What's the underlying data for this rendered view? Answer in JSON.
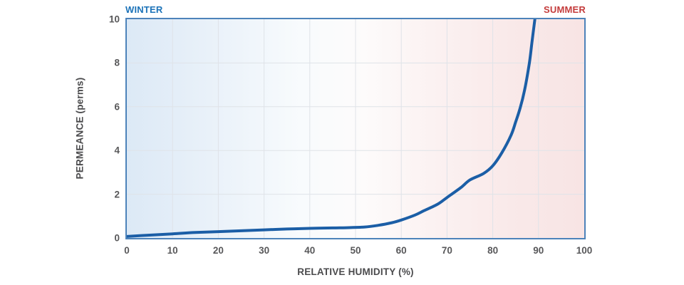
{
  "labels": {
    "winter": "WINTER",
    "summer": "SUMMER",
    "x_axis_title": "RELATIVE HUMIDITY (%)",
    "y_axis_title": "PERMEANCE (perms)"
  },
  "colors": {
    "winter_label": "#1b72b8",
    "summer_label": "#c43c3c",
    "curve": "#1b5ea6",
    "plot_border": "#4d83ba",
    "gridline": "#dfe3e8",
    "tick_text": "#58585a",
    "winter_zone_fill": "#dce9f6",
    "summer_zone_fill": "#f8e4e4"
  },
  "chart_data": {
    "type": "line",
    "title": "",
    "xlabel": "RELATIVE HUMIDITY (%)",
    "ylabel": "PERMEANCE (perms)",
    "xlim": [
      0,
      100
    ],
    "ylim": [
      0,
      10
    ],
    "x_ticks": [
      0,
      10,
      20,
      30,
      40,
      50,
      60,
      70,
      80,
      90,
      100
    ],
    "y_ticks": [
      0,
      2,
      4,
      6,
      8,
      10
    ],
    "grid": true,
    "legend": "none",
    "annotations": [
      {
        "label": "WINTER",
        "position": "top-left",
        "color": "#1b72b8"
      },
      {
        "label": "SUMMER",
        "position": "top-right",
        "color": "#c43c3c"
      }
    ],
    "series": [
      {
        "name": "permeance-vs-humidity",
        "color": "#1b5ea6",
        "points": [
          [
            0,
            0.07
          ],
          [
            5,
            0.13
          ],
          [
            10,
            0.19
          ],
          [
            15,
            0.25
          ],
          [
            20,
            0.29
          ],
          [
            25,
            0.33
          ],
          [
            30,
            0.37
          ],
          [
            35,
            0.41
          ],
          [
            40,
            0.44
          ],
          [
            45,
            0.46
          ],
          [
            48,
            0.47
          ],
          [
            52,
            0.5
          ],
          [
            55,
            0.58
          ],
          [
            58,
            0.7
          ],
          [
            60,
            0.82
          ],
          [
            63,
            1.05
          ],
          [
            65,
            1.25
          ],
          [
            68,
            1.55
          ],
          [
            70,
            1.85
          ],
          [
            73,
            2.3
          ],
          [
            75,
            2.65
          ],
          [
            78,
            2.95
          ],
          [
            80,
            3.3
          ],
          [
            82,
            3.9
          ],
          [
            84,
            4.7
          ],
          [
            85,
            5.3
          ],
          [
            86,
            5.95
          ],
          [
            87,
            6.8
          ],
          [
            88,
            8.0
          ],
          [
            88.6,
            9.0
          ],
          [
            89.2,
            10.0
          ]
        ]
      }
    ]
  }
}
